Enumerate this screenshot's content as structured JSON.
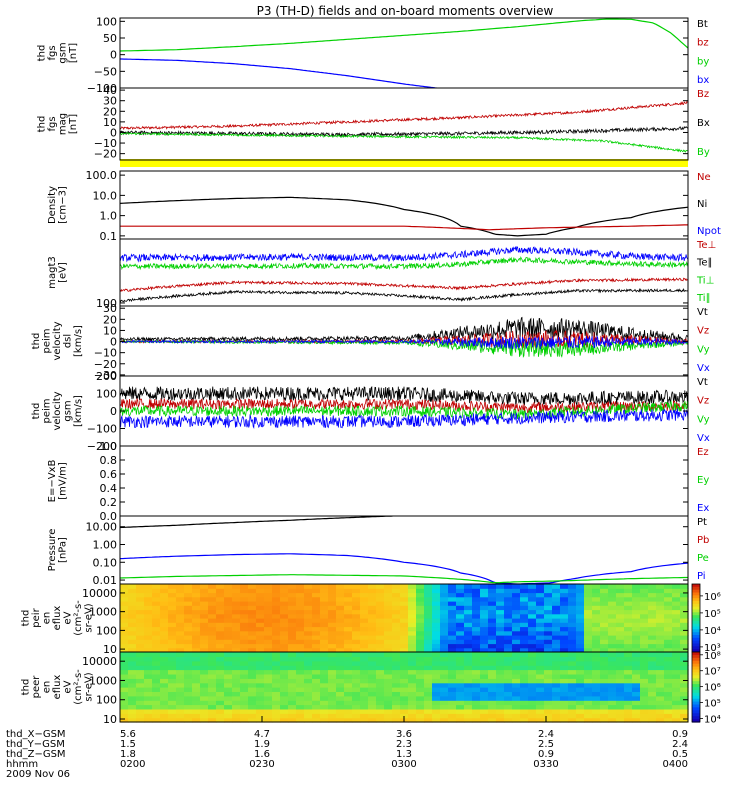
{
  "title": "P3 (TH-D) fields and on-board moments overview",
  "colors": {
    "black": "#000000",
    "red": "#c00000",
    "green": "#00d000",
    "blue": "#0000ff",
    "yellow": "#ffff00",
    "axis": "#000000"
  },
  "chart_data": [
    {
      "id": "fgs-gsm",
      "type": "line",
      "ylabel": [
        "thd",
        "fgs",
        "gsm",
        "[nT]"
      ],
      "yticks": [
        "100",
        "50",
        "0",
        "−50",
        "−100"
      ],
      "yvals": [
        100,
        50,
        0,
        -50,
        -100
      ],
      "ylim": [
        -100,
        110
      ],
      "legend": [
        {
          "text": "Bt",
          "color": "#000000"
        },
        {
          "text": "bz",
          "color": "#c00000"
        },
        {
          "text": "by",
          "color": "#00d000"
        },
        {
          "text": "bx",
          "color": "#0000ff"
        }
      ],
      "series": [
        {
          "name": "by",
          "color": "#00d000",
          "t": [
            0,
            0.1,
            0.2,
            0.3,
            0.4,
            0.5,
            0.6,
            0.7,
            0.78,
            0.82,
            0.86,
            0.9,
            0.94,
            0.97,
            1.0
          ],
          "y": [
            11,
            15,
            24,
            34,
            46,
            58,
            70,
            84,
            97,
            103,
            107,
            106,
            95,
            65,
            20
          ],
          "noise": 0
        },
        {
          "name": "bx",
          "color": "#0000ff",
          "t": [
            0,
            0.1,
            0.2,
            0.3,
            0.4,
            0.5,
            0.58
          ],
          "y": [
            -13,
            -17,
            -27,
            -42,
            -63,
            -88,
            -105
          ],
          "noise": 0
        }
      ]
    },
    {
      "id": "fgs-mag",
      "type": "line",
      "ylabel": [
        "thd",
        "fgs",
        "mag",
        "[nT]"
      ],
      "yticks": [
        "40",
        "30",
        "20",
        "10",
        "0",
        "−10",
        "−20"
      ],
      "yvals": [
        40,
        30,
        20,
        10,
        0,
        -10,
        -20
      ],
      "ylim": [
        -26,
        42
      ],
      "legend": [
        {
          "text": "Bz",
          "color": "#c00000"
        },
        {
          "text": "Bx",
          "color": "#000000"
        },
        {
          "text": "By",
          "color": "#00d000"
        }
      ],
      "series": [
        {
          "name": "Bz",
          "color": "#c00000",
          "t": [
            0,
            0.2,
            0.4,
            0.6,
            0.8,
            1.0
          ],
          "y": [
            4,
            6,
            10,
            14,
            19,
            28
          ],
          "noise": 1.2
        },
        {
          "name": "Bx",
          "color": "#000000",
          "t": [
            0,
            0.2,
            0.4,
            0.6,
            0.8,
            1.0
          ],
          "y": [
            0,
            -1,
            -2,
            -1,
            1,
            4
          ],
          "noise": 1.6
        },
        {
          "name": "By",
          "color": "#00d000",
          "t": [
            0,
            0.3,
            0.5,
            0.7,
            0.85,
            1.0
          ],
          "y": [
            -1,
            -3,
            -4,
            -5,
            -8,
            -18
          ],
          "noise": 1.0
        }
      ]
    },
    {
      "id": "density",
      "type": "line",
      "log": true,
      "ylabel": [
        "Density",
        "[cm−3]"
      ],
      "yticks": [
        "100.0",
        "10.0",
        "1.0",
        "0.1"
      ],
      "yvals": [
        100,
        10,
        1,
        0.1
      ],
      "ylim": [
        0.07,
        160
      ],
      "legend": [
        {
          "text": "Ne",
          "color": "#c00000"
        },
        {
          "text": "Ni",
          "color": "#000000"
        },
        {
          "text": "Npot",
          "color": "#0000ff"
        }
      ],
      "series": [
        {
          "name": "Ni",
          "color": "#000000",
          "t": [
            0,
            0.1,
            0.2,
            0.3,
            0.4,
            0.5,
            0.6,
            0.66,
            0.7,
            0.75,
            0.8,
            0.9,
            1.0
          ],
          "y": [
            4,
            5.5,
            7,
            8,
            6,
            2,
            0.3,
            0.12,
            0.1,
            0.12,
            0.25,
            0.8,
            2.6
          ],
          "noise": 0
        },
        {
          "name": "Ne",
          "color": "#c00000",
          "t": [
            0,
            0.3,
            0.5,
            0.65,
            0.75,
            0.9,
            1.0
          ],
          "y": [
            0.3,
            0.3,
            0.3,
            0.2,
            0.25,
            0.3,
            0.35
          ],
          "noise": 0
        }
      ]
    },
    {
      "id": "temperature",
      "type": "line",
      "log": true,
      "ylabel": [
        "magt3",
        "[eV]"
      ],
      "yticks": [
        "100"
      ],
      "yvals": [
        100
      ],
      "ylim": [
        85,
        3000
      ],
      "legend": [
        {
          "text": "Te⊥",
          "color": "#c00000"
        },
        {
          "text": "Te∥",
          "color": "#000000"
        },
        {
          "text": "Ti⊥",
          "color": "#00d000"
        },
        {
          "text": "Ti∥",
          "color": "#00d000"
        }
      ],
      "series": [
        {
          "name": "Ti-blue",
          "color": "#0000ff",
          "t": [
            0,
            0.3,
            0.5,
            0.6,
            0.7,
            0.8,
            0.9,
            1.0
          ],
          "y": [
            1100,
            1150,
            1100,
            1300,
            1700,
            1500,
            1200,
            1100
          ],
          "noise": 0.08
        },
        {
          "name": "Ti-green",
          "color": "#00d000",
          "t": [
            0,
            0.3,
            0.5,
            0.6,
            0.7,
            0.8,
            0.9,
            1.0
          ],
          "y": [
            700,
            720,
            700,
            780,
            1000,
            900,
            800,
            750
          ],
          "noise": 0.06
        },
        {
          "name": "Te-red",
          "color": "#c00000",
          "t": [
            0,
            0.2,
            0.4,
            0.6,
            0.8,
            1.0
          ],
          "y": [
            190,
            300,
            280,
            220,
            330,
            350
          ],
          "noise": 0.03
        },
        {
          "name": "Te-black",
          "color": "#000000",
          "t": [
            0,
            0.2,
            0.4,
            0.6,
            0.8,
            1.0
          ],
          "y": [
            110,
            180,
            170,
            120,
            190,
            195
          ],
          "noise": 0.03
        }
      ]
    },
    {
      "id": "velocity-dsl",
      "type": "line",
      "ylabel": [
        "thd",
        "peim",
        "velocity",
        "dsl",
        "[km/s]"
      ],
      "yticks": [
        "30",
        "20",
        "10",
        "0",
        "−10",
        "−20",
        "−30"
      ],
      "yvals": [
        30,
        20,
        10,
        0,
        -10,
        -20,
        -30
      ],
      "ylim": [
        -31,
        32
      ],
      "legend": [
        {
          "text": "Vt",
          "color": "#000000"
        },
        {
          "text": "Vz",
          "color": "#c00000"
        },
        {
          "text": "Vy",
          "color": "#00d000"
        },
        {
          "text": "Vx",
          "color": "#0000ff"
        }
      ],
      "series": [
        {
          "name": "Vt",
          "color": "#000000",
          "t": [
            0,
            0.5,
            0.6,
            0.7,
            0.8,
            0.9,
            1.0
          ],
          "y": [
            2,
            3,
            8,
            12,
            12,
            7,
            3
          ],
          "noise": 2,
          "noiseT": [
            0,
            0.5,
            0.6,
            0.7,
            0.8,
            0.9,
            1.0
          ],
          "noiseA": [
            1.5,
            2,
            6,
            10,
            9,
            6,
            3
          ]
        },
        {
          "name": "Vz",
          "color": "#c00000",
          "t": [
            0,
            0.5,
            0.7,
            0.8,
            1.0
          ],
          "y": [
            0,
            0,
            2,
            2,
            0
          ],
          "noise": 2,
          "noiseT": [
            0,
            0.5,
            0.6,
            0.7,
            0.8,
            0.9,
            1.0
          ],
          "noiseA": [
            1,
            1.5,
            5,
            8,
            8,
            5,
            2
          ]
        },
        {
          "name": "Vy",
          "color": "#00d000",
          "t": [
            0,
            0.5,
            0.7,
            0.8,
            0.9,
            1.0
          ],
          "y": [
            0,
            -1,
            -6,
            -7,
            -4,
            -1
          ],
          "noise": 2,
          "noiseT": [
            0,
            0.5,
            0.6,
            0.7,
            0.8,
            0.9,
            1.0
          ],
          "noiseA": [
            1,
            1.5,
            5,
            8,
            7,
            4,
            2
          ]
        },
        {
          "name": "Vx",
          "color": "#0000ff",
          "t": [
            0,
            0.5,
            0.7,
            1.0
          ],
          "y": [
            0,
            0,
            -1,
            0
          ],
          "noise": 2,
          "noiseT": [
            0,
            0.5,
            0.6,
            0.7,
            0.8,
            0.9,
            1.0
          ],
          "noiseA": [
            1,
            1.2,
            4,
            6,
            6,
            4,
            2
          ]
        }
      ]
    },
    {
      "id": "velocity-gsm",
      "type": "line",
      "ylabel": [
        "thd",
        "peim",
        "velocity",
        "gsm",
        "[km/s]"
      ],
      "yticks": [
        "200",
        "100",
        "0",
        "−100",
        "−200"
      ],
      "yvals": [
        200,
        100,
        0,
        -100,
        -200
      ],
      "ylim": [
        -200,
        200
      ],
      "legend": [
        {
          "text": "Vt",
          "color": "#000000"
        },
        {
          "text": "Vz",
          "color": "#c00000"
        },
        {
          "text": "Vy",
          "color": "#00d000"
        },
        {
          "text": "Vx",
          "color": "#0000ff"
        }
      ],
      "series": [
        {
          "name": "Vt",
          "color": "#000000",
          "t": [
            0,
            0.5,
            0.7,
            1.0
          ],
          "y": [
            100,
            100,
            70,
            80
          ],
          "noise": 40
        },
        {
          "name": "Vz",
          "color": "#c00000",
          "t": [
            0,
            0.5,
            0.7,
            1.0
          ],
          "y": [
            40,
            40,
            20,
            30
          ],
          "noise": 30
        },
        {
          "name": "Vy",
          "color": "#00d000",
          "t": [
            0,
            0.5,
            0.7,
            1.0
          ],
          "y": [
            0,
            0,
            -20,
            30
          ],
          "noise": 30
        },
        {
          "name": "Vx",
          "color": "#0000ff",
          "t": [
            0,
            0.5,
            0.7,
            1.0
          ],
          "y": [
            -60,
            -60,
            -40,
            -20
          ],
          "noise": 35
        }
      ]
    },
    {
      "id": "efield",
      "type": "line",
      "ylabel": [
        "E=−VxB",
        "[mV/m]"
      ],
      "yticks": [
        "1.0",
        "0.8",
        "0.6",
        "0.4",
        "0.2",
        "0.0"
      ],
      "yvals": [
        1.0,
        0.8,
        0.6,
        0.4,
        0.2,
        0.0
      ],
      "ylim": [
        0,
        1
      ],
      "legend": [
        {
          "text": "Ez",
          "color": "#c00000"
        },
        {
          "text": "Ey",
          "color": "#00d000"
        },
        {
          "text": "Ex",
          "color": "#0000ff"
        }
      ],
      "series": []
    },
    {
      "id": "pressure",
      "type": "line",
      "log": true,
      "ylabel": [
        "Pressure",
        "[nPa]"
      ],
      "yticks": [
        "10.00",
        "1.00",
        "0.10",
        "0.01"
      ],
      "yvals": [
        10,
        1,
        0.1,
        0.01
      ],
      "ylim": [
        0.006,
        40
      ],
      "legend": [
        {
          "text": "Pt",
          "color": "#000000"
        },
        {
          "text": "Pb",
          "color": "#c00000"
        },
        {
          "text": "Pe",
          "color": "#00d000"
        },
        {
          "text": "Pi",
          "color": "#0000ff"
        }
      ],
      "series": [
        {
          "name": "Pt",
          "color": "#000000",
          "t": [
            0,
            0.1,
            0.2,
            0.3,
            0.4,
            0.48
          ],
          "y": [
            9,
            12,
            17,
            23,
            32,
            40
          ],
          "noise": 0
        },
        {
          "name": "Pi",
          "color": "#0000ff",
          "t": [
            0,
            0.1,
            0.2,
            0.3,
            0.4,
            0.5,
            0.6,
            0.66,
            0.7,
            0.76,
            0.8,
            0.9,
            1.0
          ],
          "y": [
            0.16,
            0.22,
            0.27,
            0.3,
            0.24,
            0.1,
            0.025,
            0.007,
            0.006,
            0.007,
            0.012,
            0.03,
            0.09
          ],
          "noise": 0
        },
        {
          "name": "Pe",
          "color": "#00d000",
          "t": [
            0,
            0.1,
            0.3,
            0.5,
            0.6,
            0.66,
            0.7,
            0.78,
            0.9,
            1.0
          ],
          "y": [
            0.013,
            0.016,
            0.02,
            0.017,
            0.011,
            0.007,
            0.008,
            0.009,
            0.012,
            0.014
          ],
          "noise": 0
        }
      ]
    },
    {
      "id": "ion-spectrogram",
      "type": "heatmap",
      "ylabel": [
        "thd",
        "peir",
        "en",
        "eflux",
        "eV",
        "(cm²-s-",
        "sr-eV)"
      ],
      "yticks": [
        "10000",
        "1000",
        "100",
        "10"
      ],
      "yvals": [
        10000,
        1000,
        100,
        10
      ],
      "ylim": [
        7,
        30000
      ],
      "colorbar": {
        "ticks": [
          "10⁶",
          "10⁵",
          "10⁴",
          "10³"
        ],
        "yvals": [
          1000000,
          100000,
          10000,
          1000
        ],
        "range": [
          500,
          5000000
        ]
      }
    },
    {
      "id": "electron-spectrogram",
      "type": "heatmap",
      "ylabel": [
        "thd",
        "peer",
        "en",
        "eflux",
        "eV",
        "(cm²-s-",
        "sr-eV)"
      ],
      "yticks": [
        "10000",
        "1000",
        "100",
        "10"
      ],
      "yvals": [
        10000,
        1000,
        100,
        10
      ],
      "ylim": [
        7,
        30000
      ],
      "colorbar": {
        "ticks": [
          "10⁸",
          "10⁷",
          "10⁶",
          "10⁵",
          "10⁴"
        ],
        "yvals": [
          100000000,
          10000000,
          1000000,
          100000,
          10000
        ],
        "range": [
          6000,
          150000000
        ]
      }
    }
  ],
  "xaxis": {
    "rows": [
      {
        "label": "thd_X−GSM",
        "values": [
          "5.6",
          "4.7",
          "3.6",
          "2.4",
          "0.9"
        ]
      },
      {
        "label": "thd_Y−GSM",
        "values": [
          "1.5",
          "1.9",
          "2.3",
          "2.5",
          "2.4"
        ]
      },
      {
        "label": "thd_Z−GSM",
        "values": [
          "1.8",
          "1.6",
          "1.3",
          "0.9",
          "0.5"
        ]
      },
      {
        "label": "hhmm",
        "values": [
          "0200",
          "0230",
          "0300",
          "0330",
          "0400"
        ]
      }
    ],
    "date": "2009 Nov 06"
  }
}
